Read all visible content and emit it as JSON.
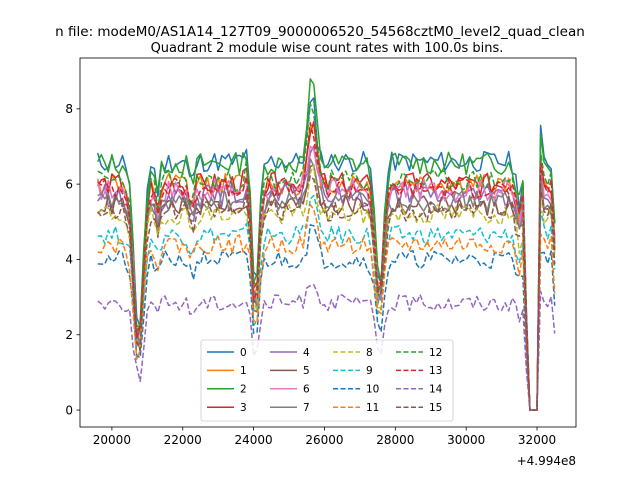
{
  "chart_data": {
    "type": "line",
    "suptitle": "n file: modeM0/AS1A14_127T09_9000006520_54568cztM0_level2_quad_clean",
    "title": "Quadrant 2 module wise count rates with 100.0s bins.",
    "xlabel": "",
    "ylabel": "",
    "x_offset_text": "+4.994e8",
    "xlim": [
      19100,
      33100
    ],
    "ylim": [
      -0.45,
      9.35
    ],
    "x_ticks": [
      20000,
      22000,
      24000,
      26000,
      28000,
      30000,
      32000
    ],
    "y_ticks": [
      0,
      2,
      4,
      6,
      8
    ],
    "x_tick_labels": [
      "20000",
      "22000",
      "24000",
      "26000",
      "28000",
      "30000",
      "32000"
    ],
    "y_tick_labels": [
      "0",
      "2",
      "4",
      "6",
      "8"
    ],
    "grid": false,
    "legend_placement": "lower-center",
    "legend_columns": 4,
    "x_start": 19600,
    "x_step": 100,
    "series": [
      {
        "name": "0",
        "color": "#1f77b4",
        "dash": "solid",
        "base": 6.6,
        "noise": 0.28,
        "seed": 11,
        "peak": 1.6
      },
      {
        "name": "1",
        "color": "#ff7f0e",
        "dash": "solid",
        "base": 6.0,
        "noise": 0.3,
        "seed": 12,
        "peak": 1.5
      },
      {
        "name": "2",
        "color": "#2ca02c",
        "dash": "solid",
        "base": 6.55,
        "noise": 0.3,
        "seed": 13,
        "peak": 2.2
      },
      {
        "name": "3",
        "color": "#d62728",
        "dash": "solid",
        "base": 6.0,
        "noise": 0.3,
        "seed": 14,
        "peak": 1.8
      },
      {
        "name": "4",
        "color": "#9467bd",
        "dash": "solid",
        "base": 5.7,
        "noise": 0.3,
        "seed": 15,
        "peak": 1.5
      },
      {
        "name": "5",
        "color": "#8c564b",
        "dash": "solid",
        "base": 5.45,
        "noise": 0.28,
        "seed": 16,
        "peak": 1.3
      },
      {
        "name": "6",
        "color": "#e377c2",
        "dash": "solid",
        "base": 5.85,
        "noise": 0.3,
        "seed": 17,
        "peak": 1.4
      },
      {
        "name": "7",
        "color": "#7f7f7f",
        "dash": "solid",
        "base": 5.55,
        "noise": 0.28,
        "seed": 18,
        "peak": 1.3
      },
      {
        "name": "8",
        "color": "#bcbd22",
        "dash": "dashed",
        "base": 5.2,
        "noise": 0.28,
        "seed": 19,
        "peak": 1.2
      },
      {
        "name": "9",
        "color": "#17becf",
        "dash": "dashed",
        "base": 4.65,
        "noise": 0.25,
        "seed": 20,
        "peak": 1.0
      },
      {
        "name": "10",
        "color": "#1f77b4",
        "dash": "dashed",
        "base": 4.0,
        "noise": 0.25,
        "seed": 21,
        "peak": 0.9
      },
      {
        "name": "11",
        "color": "#ff7f0e",
        "dash": "dashed",
        "base": 4.4,
        "noise": 0.25,
        "seed": 22,
        "peak": 1.0
      },
      {
        "name": "12",
        "color": "#2ca02c",
        "dash": "dashed",
        "base": 6.1,
        "noise": 0.28,
        "seed": 23,
        "peak": 2.0
      },
      {
        "name": "13",
        "color": "#d62728",
        "dash": "dashed",
        "base": 5.9,
        "noise": 0.28,
        "seed": 24,
        "peak": 1.6
      },
      {
        "name": "14",
        "color": "#9467bd",
        "dash": "dashed",
        "base": 2.85,
        "noise": 0.22,
        "seed": 25,
        "peak": 0.7
      },
      {
        "name": "15",
        "color": "#8c564b",
        "dash": "dashed",
        "base": 5.3,
        "noise": 0.28,
        "seed": 26,
        "peak": 1.2
      }
    ]
  }
}
